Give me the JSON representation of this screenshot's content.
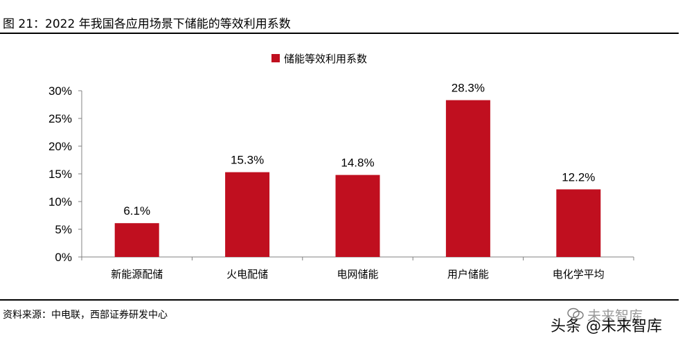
{
  "figure": {
    "title": "图 21：2022 年我国各应用场景下储能的等效利用系数",
    "source": "资料来源：中电联，西部证券研发中心"
  },
  "watermark": {
    "text": "头条 @未来智库",
    "faint_text": "未来智库"
  },
  "colors": {
    "bar": "#C00F1F",
    "axis": "#808080"
  },
  "chart_data": {
    "type": "bar",
    "categories": [
      "新能源配储",
      "火电配储",
      "电网储能",
      "用户储能",
      "电化学平均"
    ],
    "series": [
      {
        "name": "储能等效利用系数",
        "values": [
          6.1,
          15.3,
          14.8,
          28.3,
          12.2
        ]
      }
    ],
    "data_labels": [
      "6.1%",
      "15.3%",
      "14.8%",
      "28.3%",
      "12.2%"
    ],
    "y_ticks": [
      "0%",
      "5%",
      "10%",
      "15%",
      "20%",
      "25%",
      "30%"
    ],
    "ylim": [
      0,
      30
    ],
    "ylabel": "",
    "xlabel": "",
    "legend_position": "top-center",
    "grid": false
  }
}
